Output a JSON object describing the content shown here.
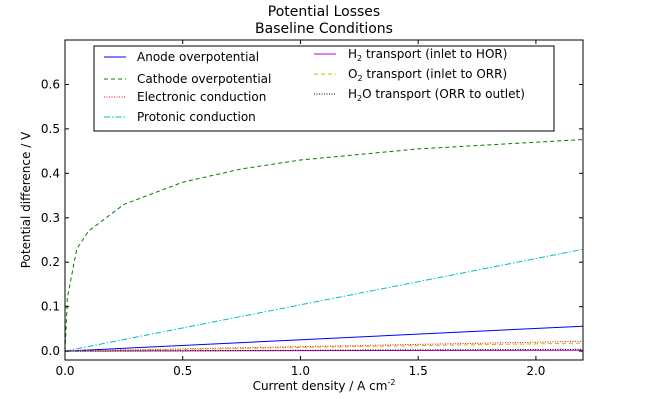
{
  "chart_data": {
    "type": "line",
    "title": "Potential Losses",
    "subtitle": "Baseline Conditions",
    "xlabel": "Current density / A cm",
    "xlabel_sup": "-2",
    "ylabel": "Potential difference / V",
    "xlim": [
      0.0,
      2.2
    ],
    "ylim": [
      -0.02,
      0.7
    ],
    "xticks": [
      0.0,
      0.5,
      1.0,
      1.5,
      2.0
    ],
    "xtick_labels": [
      "0.0",
      "0.5",
      "1.0",
      "1.5",
      "2.0"
    ],
    "yticks": [
      0.0,
      0.1,
      0.2,
      0.3,
      0.4,
      0.5,
      0.6
    ],
    "ytick_labels": [
      "0.0",
      "0.1",
      "0.2",
      "0.3",
      "0.4",
      "0.5",
      "0.6"
    ],
    "grid": false,
    "legend_position": "top",
    "series": [
      {
        "name": "Anode overpotential",
        "label_main": "Anode overpotential",
        "color": "#0000ff",
        "style": "solid",
        "model": "linear",
        "start": 0.0,
        "end": 0.056
      },
      {
        "name": "Cathode overpotential",
        "label_main": "Cathode overpotential",
        "color": "#008000",
        "style": "dashed",
        "model": "tafel",
        "points": [
          [
            0.0,
            0.0
          ],
          [
            0.01,
            0.12
          ],
          [
            0.05,
            0.23
          ],
          [
            0.1,
            0.27
          ],
          [
            0.25,
            0.33
          ],
          [
            0.5,
            0.38
          ],
          [
            0.75,
            0.41
          ],
          [
            1.0,
            0.43
          ],
          [
            1.5,
            0.455
          ],
          [
            2.0,
            0.47
          ],
          [
            2.2,
            0.476
          ]
        ]
      },
      {
        "name": "Electronic conduction",
        "label_main": "Electronic conduction",
        "color": "#ff0000",
        "style": "dotted",
        "model": "linear",
        "start": 0.0,
        "end": 0.022
      },
      {
        "name": "Protonic conduction",
        "label_main": "Protonic conduction",
        "color": "#00bfbf",
        "style": "dashdot",
        "model": "linear",
        "start": 0.0,
        "end": 0.229
      },
      {
        "name": "H2 transport (inlet to HOR)",
        "label_pre": "H",
        "label_sub": "2",
        "label_post": " transport (inlet to HOR)",
        "color": "#bf00bf",
        "style": "solid",
        "model": "linear",
        "start": 0.0,
        "end": 0.002
      },
      {
        "name": "O2 transport (inlet to ORR)",
        "label_pre": "O",
        "label_sub": "2",
        "label_post": " transport (inlet to ORR)",
        "color": "#bfbf00",
        "style": "dashed",
        "model": "linear",
        "start": 0.0,
        "end": 0.018
      },
      {
        "name": "H2O transport (ORR to outlet)",
        "label_pre": "H",
        "label_sub": "2",
        "label_post": "O transport (ORR to outlet)",
        "color": "#000000",
        "style": "dotted",
        "model": "linear",
        "start": 0.0,
        "end": 0.004
      }
    ]
  }
}
